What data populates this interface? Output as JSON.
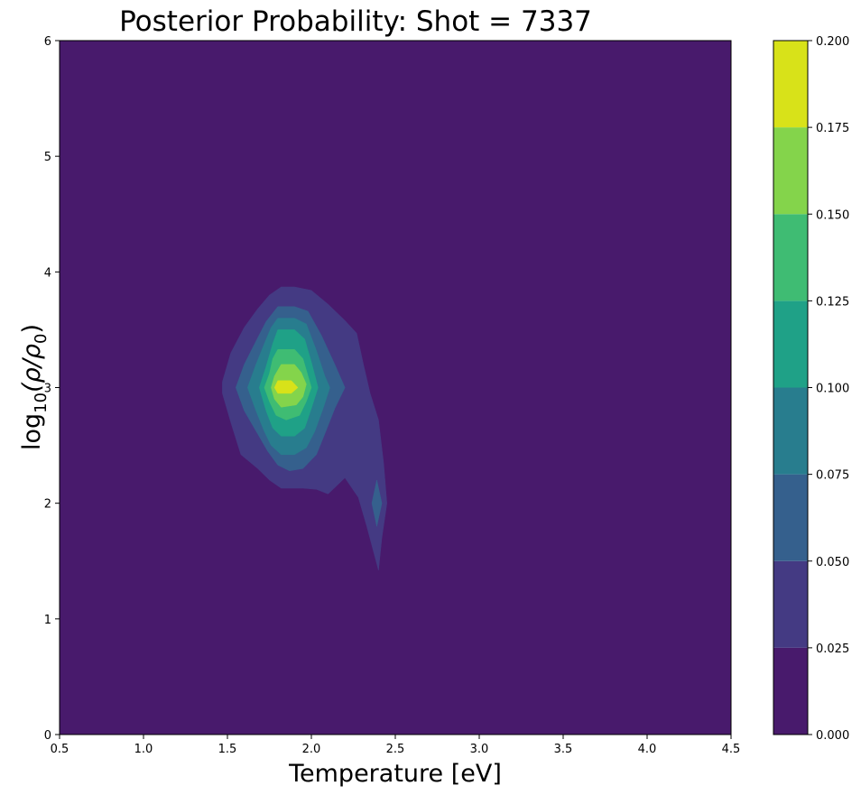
{
  "chart_data": {
    "type": "heatmap",
    "subtype": "filled-contour",
    "title": "Posterior Probability: Shot = 7337",
    "xlabel": "Temperature [eV]",
    "ylabel": {
      "prefix": "log",
      "subscript": "10",
      "body": "(ρ/ρ",
      "body_subscript": "0",
      "suffix": ")"
    },
    "xlim": [
      0.5,
      4.5
    ],
    "ylim": [
      0,
      6
    ],
    "x_ticks": [
      "0.5",
      "1.0",
      "1.5",
      "2.0",
      "2.5",
      "3.0",
      "3.5",
      "4.0",
      "4.5"
    ],
    "y_ticks": [
      "0",
      "1",
      "2",
      "3",
      "4",
      "5",
      "6"
    ],
    "grid": false,
    "colorbar": {
      "range": [
        0,
        0.2
      ],
      "ticks": [
        "0.000",
        "0.025",
        "0.050",
        "0.075",
        "0.100",
        "0.125",
        "0.150",
        "0.175",
        "0.200"
      ],
      "levels": [
        0,
        0.025,
        0.05,
        0.075,
        0.1,
        0.125,
        0.15,
        0.175,
        0.2
      ],
      "colors": [
        "#481a6c",
        "#443a83",
        "#35608d",
        "#287d8e",
        "#1fa187",
        "#3fbc73",
        "#84d44b",
        "#d8e219"
      ]
    },
    "contours": [
      {
        "level": 0.025,
        "color": "#443a83",
        "points": [
          [
            1.82,
            3.87
          ],
          [
            1.9,
            3.87
          ],
          [
            2.0,
            3.84
          ],
          [
            2.1,
            3.72
          ],
          [
            2.2,
            3.58
          ],
          [
            2.27,
            3.47
          ],
          [
            2.31,
            3.2
          ],
          [
            2.35,
            2.95
          ],
          [
            2.4,
            2.72
          ],
          [
            2.43,
            2.35
          ],
          [
            2.45,
            2.0
          ],
          [
            2.42,
            1.7
          ],
          [
            2.4,
            1.42
          ],
          [
            2.33,
            1.8
          ],
          [
            2.28,
            2.05
          ],
          [
            2.2,
            2.22
          ],
          [
            2.1,
            2.08
          ],
          [
            2.03,
            2.12
          ],
          [
            1.95,
            2.13
          ],
          [
            1.82,
            2.13
          ],
          [
            1.75,
            2.2
          ],
          [
            1.68,
            2.3
          ],
          [
            1.58,
            2.42
          ],
          [
            1.52,
            2.7
          ],
          [
            1.47,
            2.95
          ],
          [
            1.47,
            3.05
          ],
          [
            1.52,
            3.3
          ],
          [
            1.6,
            3.52
          ],
          [
            1.68,
            3.68
          ],
          [
            1.75,
            3.8
          ]
        ]
      },
      {
        "level": 0.05,
        "color": "#35608d",
        "points": [
          [
            1.8,
            3.7
          ],
          [
            1.9,
            3.7
          ],
          [
            1.98,
            3.66
          ],
          [
            2.06,
            3.45
          ],
          [
            2.14,
            3.2
          ],
          [
            2.2,
            3.0
          ],
          [
            2.14,
            2.82
          ],
          [
            2.08,
            2.6
          ],
          [
            2.03,
            2.42
          ],
          [
            1.95,
            2.3
          ],
          [
            1.87,
            2.28
          ],
          [
            1.8,
            2.33
          ],
          [
            1.74,
            2.45
          ],
          [
            1.68,
            2.6
          ],
          [
            1.6,
            2.8
          ],
          [
            1.55,
            3.0
          ],
          [
            1.6,
            3.2
          ],
          [
            1.67,
            3.4
          ],
          [
            1.73,
            3.57
          ]
        ]
      },
      {
        "level": 0.05,
        "color": "#35608d",
        "points": [
          [
            2.39,
            2.2
          ],
          [
            2.42,
            2.0
          ],
          [
            2.39,
            1.8
          ],
          [
            2.36,
            2.0
          ]
        ]
      },
      {
        "level": 0.075,
        "color": "#287d8e",
        "points": [
          [
            1.8,
            3.6
          ],
          [
            1.9,
            3.6
          ],
          [
            1.97,
            3.55
          ],
          [
            2.03,
            3.32
          ],
          [
            2.08,
            3.1
          ],
          [
            2.11,
            3.0
          ],
          [
            2.07,
            2.82
          ],
          [
            2.02,
            2.62
          ],
          [
            1.97,
            2.48
          ],
          [
            1.9,
            2.42
          ],
          [
            1.82,
            2.42
          ],
          [
            1.76,
            2.5
          ],
          [
            1.72,
            2.62
          ],
          [
            1.67,
            2.8
          ],
          [
            1.62,
            3.0
          ],
          [
            1.67,
            3.2
          ],
          [
            1.72,
            3.38
          ],
          [
            1.76,
            3.52
          ]
        ]
      },
      {
        "level": 0.1,
        "color": "#1fa187",
        "points": [
          [
            1.8,
            3.5
          ],
          [
            1.9,
            3.5
          ],
          [
            1.96,
            3.42
          ],
          [
            2.0,
            3.22
          ],
          [
            2.04,
            3.0
          ],
          [
            2.0,
            2.82
          ],
          [
            1.96,
            2.65
          ],
          [
            1.9,
            2.58
          ],
          [
            1.82,
            2.58
          ],
          [
            1.77,
            2.65
          ],
          [
            1.73,
            2.8
          ],
          [
            1.69,
            3.0
          ],
          [
            1.73,
            3.18
          ],
          [
            1.77,
            3.38
          ]
        ]
      },
      {
        "level": 0.125,
        "color": "#3fbc73",
        "points": [
          [
            1.8,
            3.33
          ],
          [
            1.9,
            3.33
          ],
          [
            1.95,
            3.25
          ],
          [
            1.98,
            3.1
          ],
          [
            2.0,
            3.0
          ],
          [
            1.97,
            2.88
          ],
          [
            1.93,
            2.76
          ],
          [
            1.85,
            2.72
          ],
          [
            1.79,
            2.76
          ],
          [
            1.75,
            2.88
          ],
          [
            1.72,
            3.0
          ],
          [
            1.75,
            3.12
          ],
          [
            1.77,
            3.25
          ]
        ]
      },
      {
        "level": 0.15,
        "color": "#84d44b",
        "points": [
          [
            1.82,
            3.2
          ],
          [
            1.9,
            3.2
          ],
          [
            1.94,
            3.13
          ],
          [
            1.97,
            3.03
          ],
          [
            1.95,
            2.92
          ],
          [
            1.91,
            2.85
          ],
          [
            1.82,
            2.83
          ],
          [
            1.78,
            2.9
          ],
          [
            1.76,
            3.0
          ],
          [
            1.78,
            3.1
          ]
        ]
      },
      {
        "level": 0.175,
        "color": "#d8e219",
        "points": [
          [
            1.8,
            3.06
          ],
          [
            1.88,
            3.06
          ],
          [
            1.92,
            3.0
          ],
          [
            1.88,
            2.95
          ],
          [
            1.8,
            2.95
          ],
          [
            1.78,
            3.0
          ]
        ]
      }
    ]
  }
}
